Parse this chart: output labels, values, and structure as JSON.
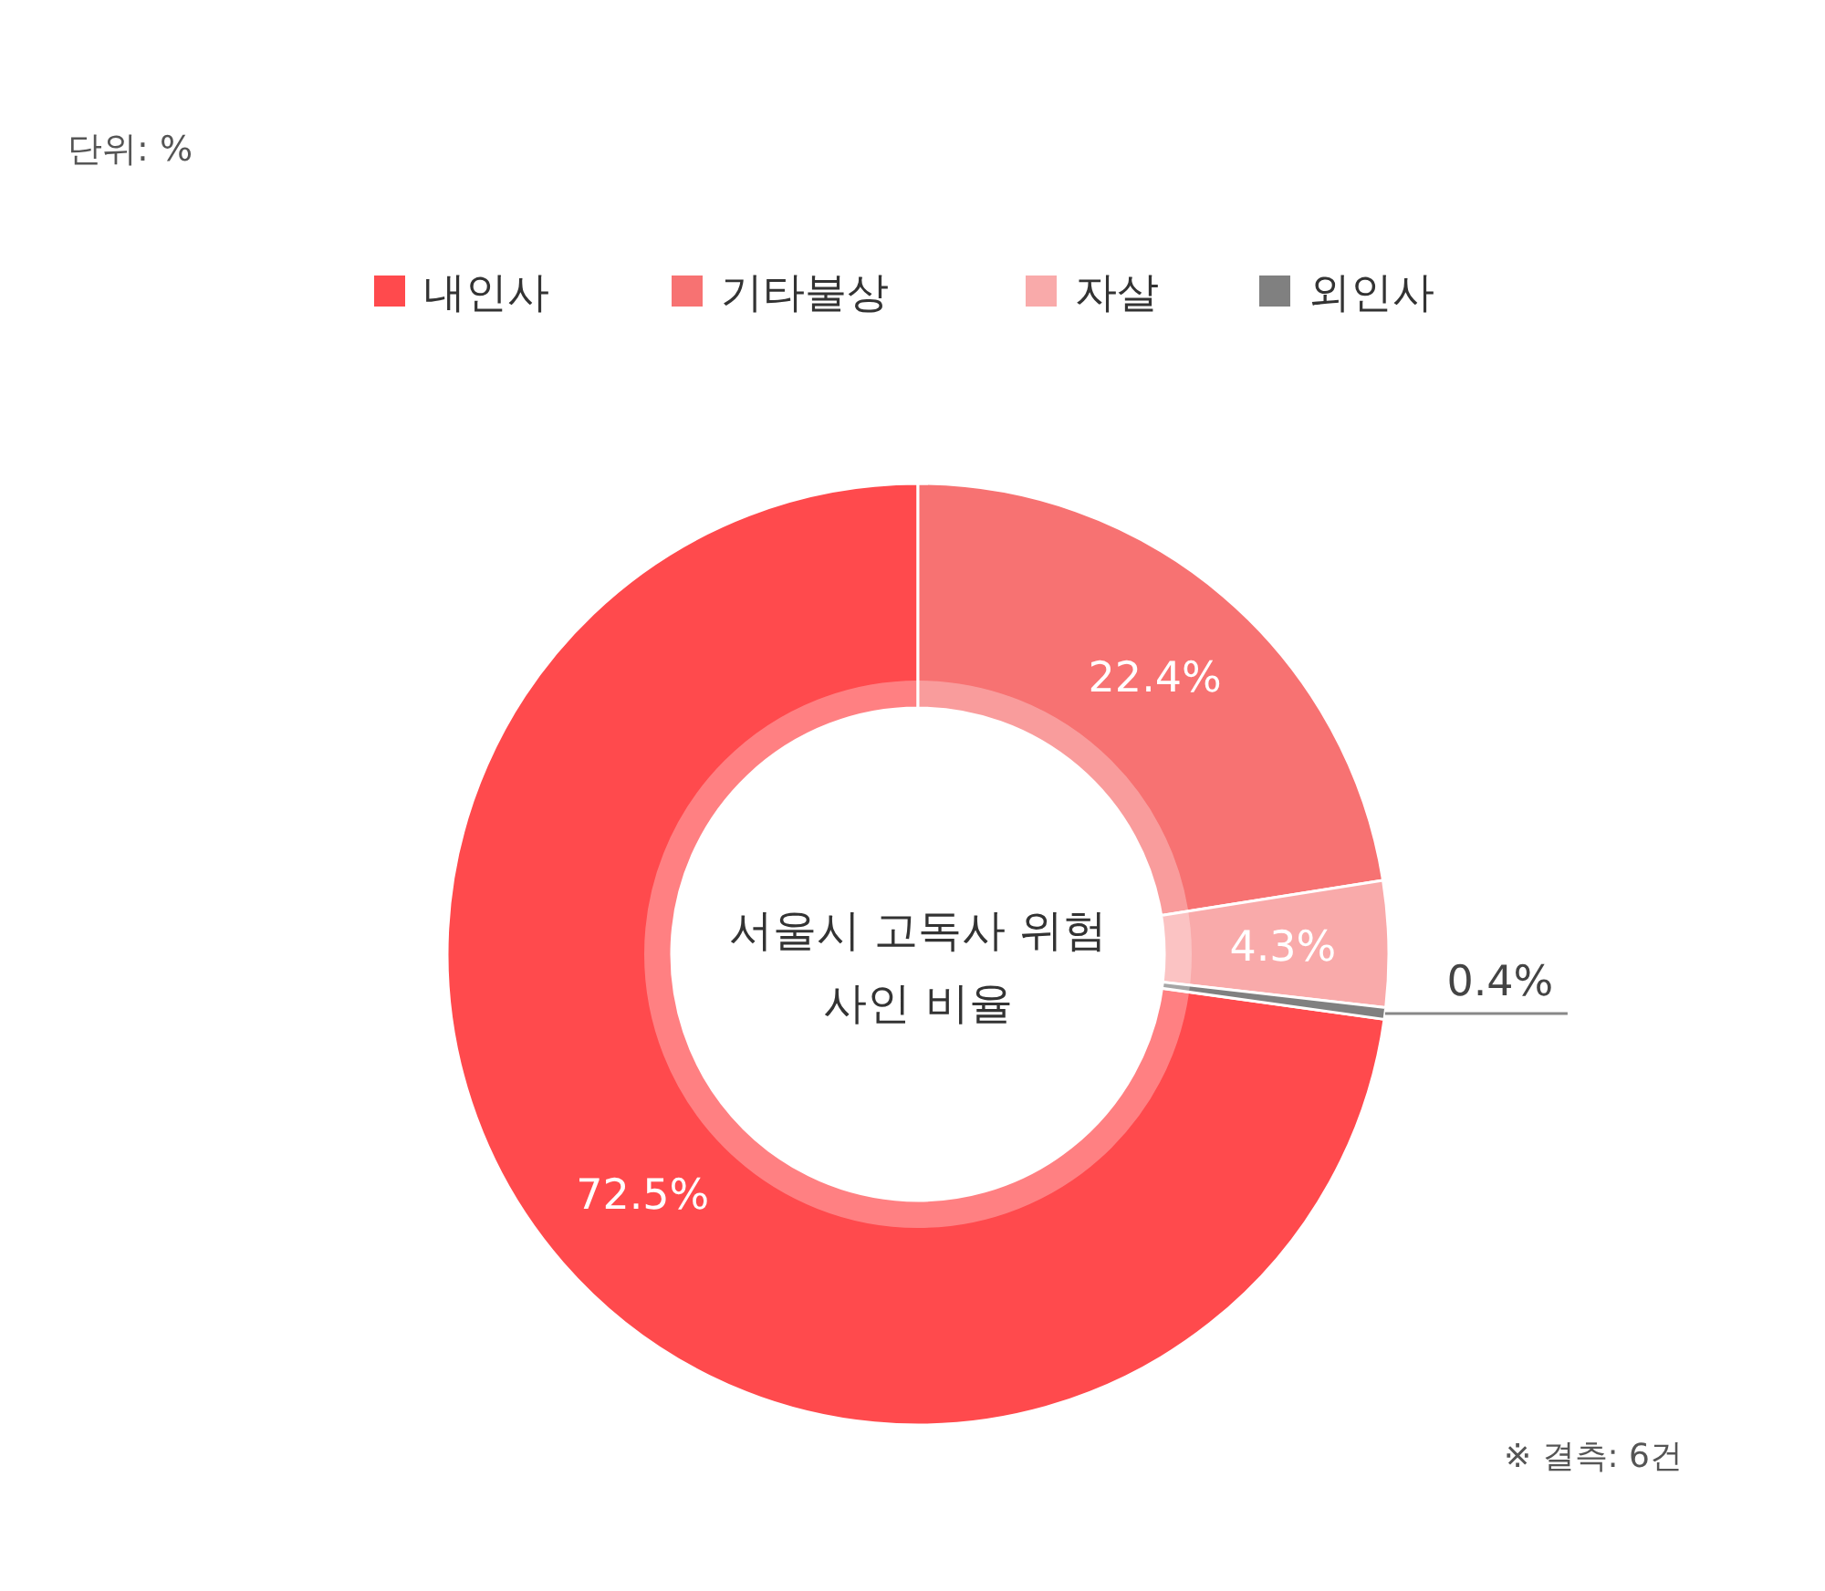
{
  "chart_data": {
    "type": "donut",
    "title": "서울시 고독사 위험 사인 비율",
    "categories": [
      "내인사",
      "기타불상",
      "자살",
      "외인사"
    ],
    "values": [
      72.5,
      22.4,
      4.3,
      0.4
    ],
    "colors": [
      "#ff4a4d",
      "#f77272",
      "#f9aaaa",
      "#808080"
    ],
    "value_labels": [
      "72.5%",
      "22.4%",
      "4.3%",
      "0.4%"
    ],
    "legend": "top",
    "annotations": [
      "단위: %",
      "※ 결측: 6건"
    ]
  }
}
